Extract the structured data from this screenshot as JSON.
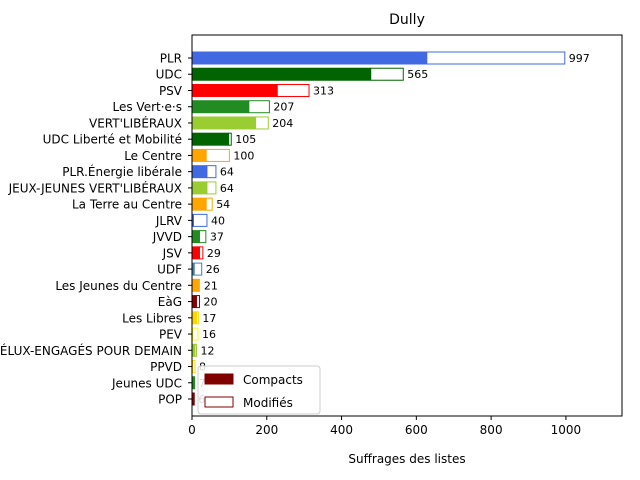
{
  "chart_data": {
    "type": "bar",
    "orientation": "horizontal",
    "stacked": true,
    "title": "Dully",
    "xlabel": "Suffrages des listes",
    "ylabel": "",
    "xlim": [
      0,
      1150
    ],
    "xticks": [
      0,
      200,
      400,
      600,
      800,
      1000
    ],
    "grid": false,
    "legend_position": "lower-left",
    "categories": [
      "PLR",
      "UDC",
      "PSV",
      "Les Vert·e·s",
      "VERT'LIBÉRAUX",
      "UDC Liberté et Mobilité",
      "Le Centre",
      "PLR.Énergie libérale",
      "JEUX-JEUNES VERT'LIBÉRAUX",
      "La Terre au Centre",
      "JLRV",
      "JVVD",
      "JSV",
      "UDF",
      "Les Jeunes du Centre",
      "EàG",
      "Les Libres",
      "PEV",
      "JEUNES ÉLUX-ENGAGÉS POUR DEMAIN",
      "PPVD",
      "Jeunes UDC",
      "POP"
    ],
    "colors": [
      "#4169e1",
      "#006400",
      "#ff0000",
      "#228b22",
      "#9acd32",
      "#006400",
      "#ffa500",
      "#4169e1",
      "#9acd32",
      "#ffa500",
      "#4169e1",
      "#228b22",
      "#ff0000",
      "#4682b4",
      "#ffa500",
      "#8b0000",
      "#ffd700",
      "#ffff00",
      "#9acd32",
      "#ffd700",
      "#228b22",
      "#8b0000"
    ],
    "series": [
      {
        "name": "Compacts",
        "values": [
          628,
          478,
          228,
          152,
          170,
          98,
          38,
          40,
          40,
          38,
          4,
          20,
          20,
          6,
          21,
          12,
          12,
          2,
          8,
          2,
          6,
          5
        ]
      },
      {
        "name": "Modifiés",
        "values": [
          369,
          87,
          85,
          55,
          34,
          7,
          62,
          24,
          24,
          16,
          36,
          17,
          9,
          20,
          0,
          8,
          5,
          14,
          4,
          6,
          1,
          1
        ]
      }
    ],
    "totals": [
      997,
      565,
      313,
      207,
      204,
      105,
      100,
      64,
      64,
      54,
      40,
      37,
      29,
      26,
      21,
      20,
      17,
      16,
      12,
      8,
      7,
      6
    ],
    "legend": [
      {
        "label": "Compacts",
        "swatch_fill": "#800000",
        "swatch_edge": "#800000"
      },
      {
        "label": "Modifiés",
        "swatch_fill": "#ffffff",
        "swatch_edge": "#800000"
      }
    ]
  }
}
